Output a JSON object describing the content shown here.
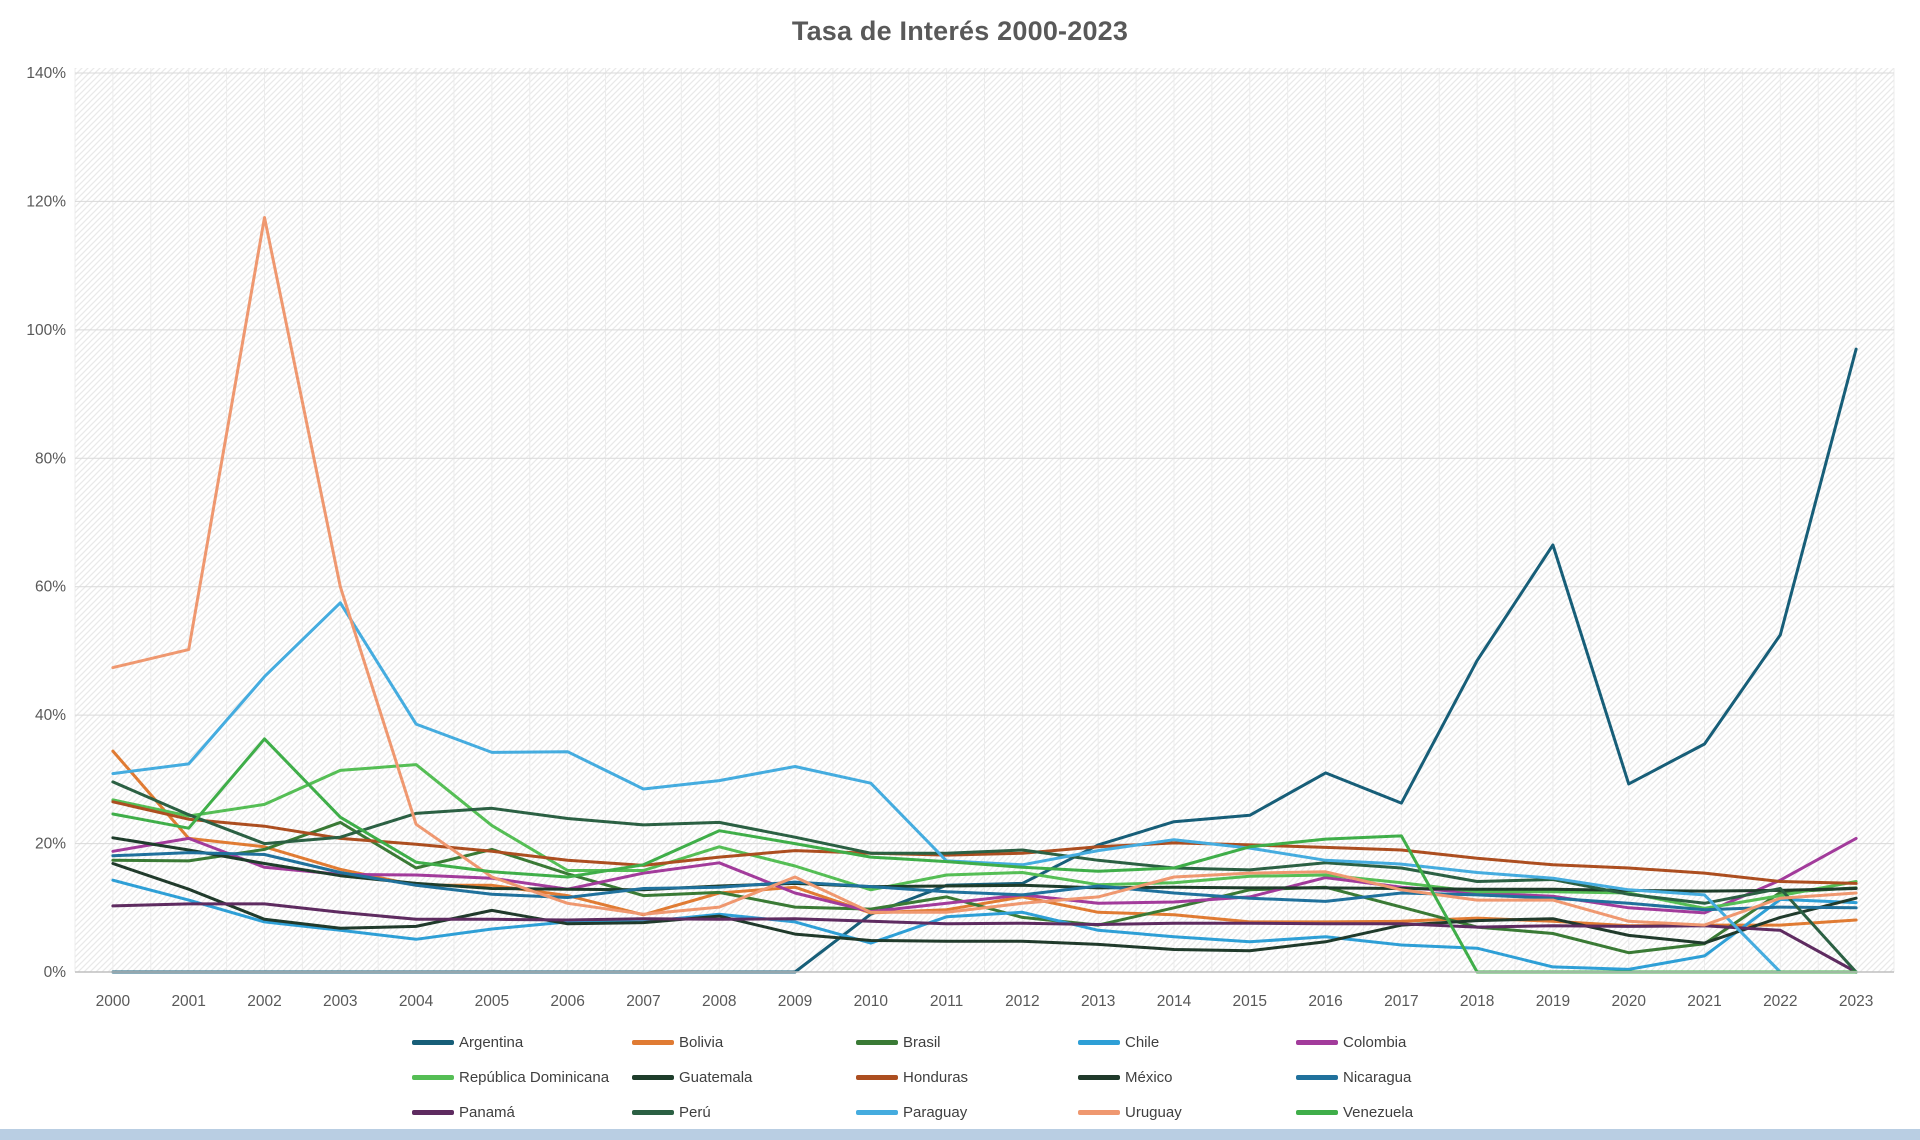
{
  "chart": {
    "title": "Tasa de Interés 2000-2023"
  },
  "axes": {
    "y_tick_labels": [
      "0%",
      "20%",
      "40%",
      "60%",
      "80%",
      "100%",
      "120%",
      "140%"
    ],
    "x_tick_labels": [
      "2000",
      "2001",
      "2002",
      "2003",
      "2004",
      "2005",
      "2006",
      "2007",
      "2008",
      "2009",
      "2010",
      "2011",
      "2012",
      "2013",
      "2014",
      "2015",
      "2016",
      "2017",
      "2018",
      "2019",
      "2020",
      "2021",
      "2022",
      "2023"
    ]
  },
  "chart_data": {
    "type": "line",
    "title": "Tasa de Interés 2000-2023",
    "x": [
      2000,
      2001,
      2002,
      2003,
      2004,
      2005,
      2006,
      2007,
      2008,
      2009,
      2010,
      2011,
      2012,
      2013,
      2014,
      2015,
      2016,
      2017,
      2018,
      2019,
      2020,
      2021,
      2022,
      2023
    ],
    "xlabel": "",
    "ylabel": "",
    "ylim": [
      0,
      140
    ],
    "yticks": [
      0,
      20,
      40,
      60,
      80,
      100,
      120,
      140
    ],
    "y_unit": "percent",
    "grid": true,
    "legend_position": "bottom",
    "plot_background": "diagonal-hatch",
    "series": [
      {
        "name": "Argentina",
        "color": "#175e78",
        "values": [
          0,
          0,
          0,
          0,
          0,
          0,
          0,
          0,
          0,
          0,
          9.0,
          13.5,
          13.8,
          19.8,
          23.4,
          24.4,
          31.0,
          26.3,
          48.5,
          66.5,
          29.3,
          35.5,
          52.5,
          97.0
        ]
      },
      {
        "name": "Bolivia",
        "color": "#e07b33",
        "values": [
          34.4,
          20.8,
          19.5,
          16.0,
          13.5,
          13.5,
          11.9,
          8.9,
          12.3,
          13.2,
          9.2,
          9.7,
          11.7,
          9.3,
          8.9,
          7.8,
          7.8,
          7.9,
          8.4,
          7.9,
          7.2,
          7.3,
          7.3,
          8.1
        ]
      },
      {
        "name": "Brasil",
        "color": "#3a7a35",
        "values": [
          17.4,
          17.3,
          19.1,
          23.3,
          16.2,
          19.1,
          15.3,
          11.9,
          12.4,
          10.1,
          9.8,
          11.7,
          8.5,
          7.3,
          10.0,
          12.8,
          13.2,
          10.1,
          7.0,
          6.0,
          3.0,
          4.4,
          12.4,
          13.1
        ]
      },
      {
        "name": "Chile",
        "color": "#2e9fd6",
        "values": [
          14.3,
          11.2,
          7.8,
          6.5,
          5.1,
          6.7,
          7.8,
          7.8,
          9.0,
          7.8,
          4.5,
          8.6,
          9.3,
          6.5,
          5.5,
          4.7,
          5.5,
          4.2,
          3.7,
          0.8,
          0.4,
          2.5,
          11.3,
          10.8
        ]
      },
      {
        "name": "Colombia",
        "color": "#a23b9b",
        "values": [
          18.8,
          20.8,
          16.3,
          15.2,
          15.1,
          14.6,
          12.9,
          15.4,
          17.0,
          12.3,
          9.4,
          10.7,
          12.0,
          10.7,
          10.9,
          11.7,
          14.7,
          13.2,
          12.3,
          11.8,
          10.0,
          9.2,
          14.3,
          20.8
        ]
      },
      {
        "name": "República Dominicana",
        "color": "#55be55",
        "values": [
          26.8,
          24.3,
          26.1,
          31.4,
          32.3,
          22.8,
          15.8,
          15.8,
          19.5,
          16.5,
          12.8,
          15.1,
          15.5,
          13.6,
          13.9,
          14.9,
          15.1,
          13.9,
          12.5,
          12.5,
          12.3,
          9.9,
          11.9,
          14.1
        ]
      },
      {
        "name": "Guatemala",
        "color": "#1e3d2b",
        "values": [
          20.9,
          19.0,
          16.9,
          15.0,
          13.8,
          13.0,
          12.9,
          12.8,
          13.4,
          13.8,
          13.3,
          13.4,
          13.5,
          13.1,
          13.2,
          13.1,
          13.1,
          13.0,
          12.9,
          12.9,
          12.7,
          12.6,
          12.7,
          13.0
        ]
      },
      {
        "name": "Honduras",
        "color": "#ac4e20",
        "values": [
          26.5,
          23.8,
          22.7,
          20.8,
          19.9,
          18.8,
          17.4,
          16.6,
          17.9,
          18.9,
          18.5,
          18.2,
          18.5,
          19.5,
          20.1,
          19.8,
          19.4,
          19.0,
          17.7,
          16.7,
          16.2,
          15.4,
          14.1,
          13.8
        ]
      },
      {
        "name": "México",
        "color": "#203a2b",
        "values": [
          16.9,
          12.9,
          8.2,
          6.8,
          7.1,
          9.6,
          7.5,
          7.7,
          8.7,
          5.9,
          4.9,
          4.8,
          4.8,
          4.3,
          3.5,
          3.3,
          4.7,
          7.3,
          8.0,
          8.3,
          5.7,
          4.5,
          8.5,
          11.5
        ]
      },
      {
        "name": "Nicaragua",
        "color": "#20719c",
        "values": [
          18.1,
          18.6,
          18.3,
          15.5,
          13.5,
          12.1,
          11.6,
          13.0,
          13.2,
          14.0,
          13.3,
          12.5,
          12.0,
          13.4,
          12.3,
          11.5,
          11.0,
          12.3,
          12.0,
          11.5,
          10.7,
          9.7,
          10.1,
          10.0
        ]
      },
      {
        "name": "Panamá",
        "color": "#5e2b60",
        "values": [
          10.3,
          10.6,
          10.6,
          9.3,
          8.2,
          8.2,
          8.1,
          8.3,
          8.2,
          8.3,
          7.9,
          7.5,
          7.6,
          7.4,
          7.6,
          7.6,
          7.5,
          7.5,
          7.0,
          7.2,
          7.1,
          7.2,
          6.5,
          0
        ]
      },
      {
        "name": "Perú",
        "color": "#2b6043",
        "values": [
          29.6,
          24.5,
          20.0,
          21.0,
          24.7,
          25.5,
          23.9,
          22.9,
          23.3,
          21.0,
          18.5,
          18.5,
          19.0,
          17.4,
          16.2,
          15.9,
          17.0,
          16.2,
          14.1,
          14.4,
          12.1,
          10.7,
          13.0,
          0
        ]
      },
      {
        "name": "Paraguay",
        "color": "#45acdf",
        "values": [
          30.9,
          32.4,
          46.0,
          57.5,
          38.6,
          34.2,
          34.3,
          28.5,
          29.8,
          32.0,
          29.4,
          17.3,
          16.7,
          18.9,
          20.6,
          19.3,
          17.4,
          16.8,
          15.5,
          14.6,
          12.8,
          12.0,
          0,
          0
        ]
      },
      {
        "name": "Uruguay",
        "color": "#ef9870",
        "values": [
          47.4,
          50.2,
          117.5,
          60.0,
          23.0,
          14.8,
          10.7,
          9.0,
          10.1,
          14.8,
          9.3,
          9.3,
          10.7,
          11.7,
          14.8,
          15.4,
          15.6,
          12.8,
          11.2,
          11.2,
          7.9,
          7.3,
          11.5,
          12.3
        ]
      },
      {
        "name": "Venezuela",
        "color": "#3fae49",
        "values": [
          24.6,
          22.4,
          36.3,
          24.1,
          17.1,
          15.6,
          14.8,
          16.7,
          22.0,
          20.0,
          17.9,
          17.2,
          16.3,
          15.7,
          16.2,
          19.5,
          20.7,
          21.2,
          0,
          0,
          0,
          0,
          0,
          0
        ]
      }
    ]
  }
}
